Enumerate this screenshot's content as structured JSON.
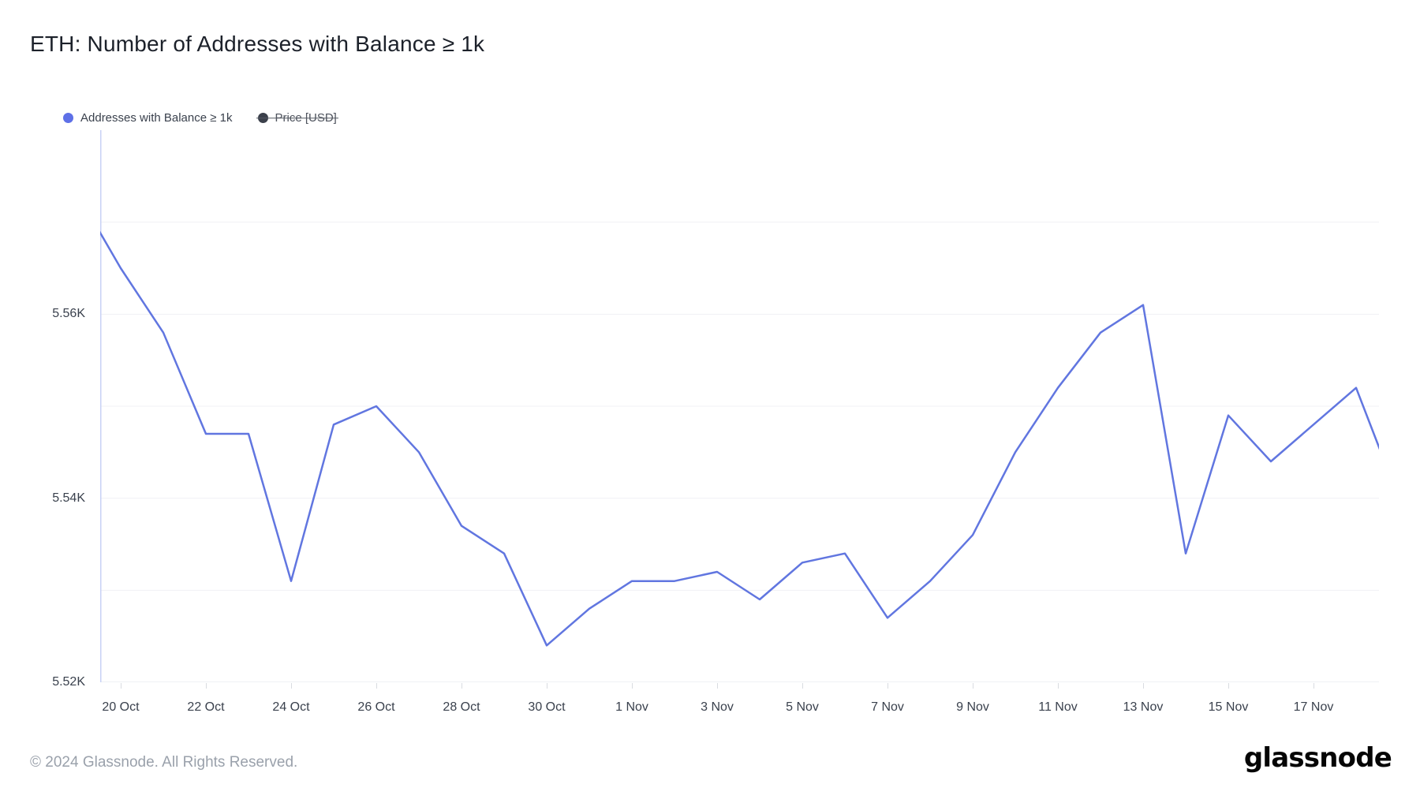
{
  "header": {
    "title": "ETH: Number of Addresses with Balance ≥ 1k"
  },
  "legend": [
    {
      "label": "Addresses with Balance ≥ 1k",
      "color": "#5e70e7",
      "disabled": false
    },
    {
      "label": "Price [USD]",
      "color": "#3b404b",
      "disabled": true
    }
  ],
  "footer": {
    "copyright": "© 2024 Glassnode. All Rights Reserved.",
    "brand": "glassnode"
  },
  "chart_data": {
    "type": "line",
    "title": "ETH: Number of Addresses with Balance ≥ 1k",
    "series": [
      {
        "name": "Addresses with Balance ≥ 1k",
        "values": [
          5573,
          5565,
          5558,
          5547,
          5547,
          5531,
          5548,
          5550,
          5545,
          5537,
          5534,
          5524,
          5528,
          5531,
          5531,
          5532,
          5529,
          5533,
          5534,
          5527,
          5531,
          5536,
          5545,
          5552,
          5558,
          5561,
          5534,
          5549,
          5544,
          5548,
          5552,
          5540
        ]
      }
    ],
    "x": [
      "19 Oct",
      "20 Oct",
      "21 Oct",
      "22 Oct",
      "23 Oct",
      "24 Oct",
      "25 Oct",
      "26 Oct",
      "27 Oct",
      "28 Oct",
      "29 Oct",
      "30 Oct",
      "31 Oct",
      "1 Nov",
      "2 Nov",
      "3 Nov",
      "4 Nov",
      "5 Nov",
      "6 Nov",
      "7 Nov",
      "8 Nov",
      "9 Nov",
      "10 Nov",
      "11 Nov",
      "12 Nov",
      "13 Nov",
      "14 Nov",
      "15 Nov",
      "16 Nov",
      "17 Nov",
      "18 Nov",
      "19 Nov"
    ],
    "values_unit": "addresses",
    "x_axis": {
      "tick_labels": [
        "20 Oct",
        "22 Oct",
        "24 Oct",
        "26 Oct",
        "28 Oct",
        "30 Oct",
        "1 Nov",
        "3 Nov",
        "5 Nov",
        "7 Nov",
        "9 Nov",
        "11 Nov",
        "13 Nov",
        "15 Nov",
        "17 Nov"
      ]
    },
    "y_axis": {
      "min": 5520,
      "max": 5580,
      "tick_labels": [
        "5.56K",
        "5.54K",
        "5.52K"
      ],
      "tick_values": [
        5560,
        5540,
        5520
      ],
      "gridline_values": [
        5570,
        5560,
        5550,
        5540,
        5530,
        5520
      ]
    },
    "grid": true,
    "legend_position": "top-left",
    "line_color": "#6176e0",
    "axis_line_color": "#c8d2f5",
    "gridline_color": "#f0f1f4"
  }
}
